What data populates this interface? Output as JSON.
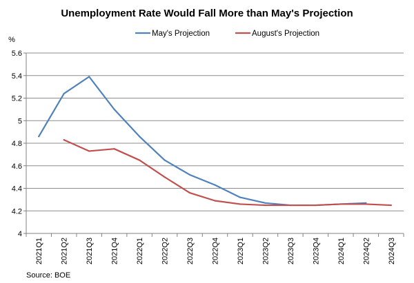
{
  "chart_data": {
    "type": "line",
    "title": "Unemployment Rate Would Fall More than May's Projection",
    "ylabel": "%",
    "xlabel": "",
    "ylim": [
      4,
      5.6
    ],
    "yticks": [
      4,
      4.2,
      4.4,
      4.6,
      4.8,
      5,
      5.2,
      5.4,
      5.6
    ],
    "ytick_labels": [
      "4",
      "4.2",
      "4.4",
      "4.6",
      "4.8",
      "5",
      "5.2",
      "5.4",
      "5.6"
    ],
    "grid": true,
    "legend_position": "top-center",
    "categories": [
      "2021Q1",
      "2021Q2",
      "2021Q3",
      "2021Q4",
      "2022Q1",
      "2022Q2",
      "2022Q3",
      "2022Q4",
      "2023Q1",
      "2023Q2",
      "2023Q3",
      "2023Q4",
      "2024Q1",
      "2024Q2",
      "2024Q3"
    ],
    "series": [
      {
        "name": "May's Projection",
        "color": "#4F81BD",
        "values": [
          4.86,
          5.24,
          5.39,
          5.1,
          4.86,
          4.65,
          4.52,
          4.43,
          4.32,
          4.27,
          4.25,
          4.25,
          4.26,
          4.27,
          null
        ]
      },
      {
        "name": "August's Projection",
        "color": "#C0504D",
        "values": [
          null,
          4.83,
          4.73,
          4.75,
          4.65,
          4.5,
          4.36,
          4.29,
          4.26,
          4.25,
          4.25,
          4.25,
          4.26,
          4.26,
          4.25
        ]
      }
    ],
    "source": "Source: BOE"
  }
}
